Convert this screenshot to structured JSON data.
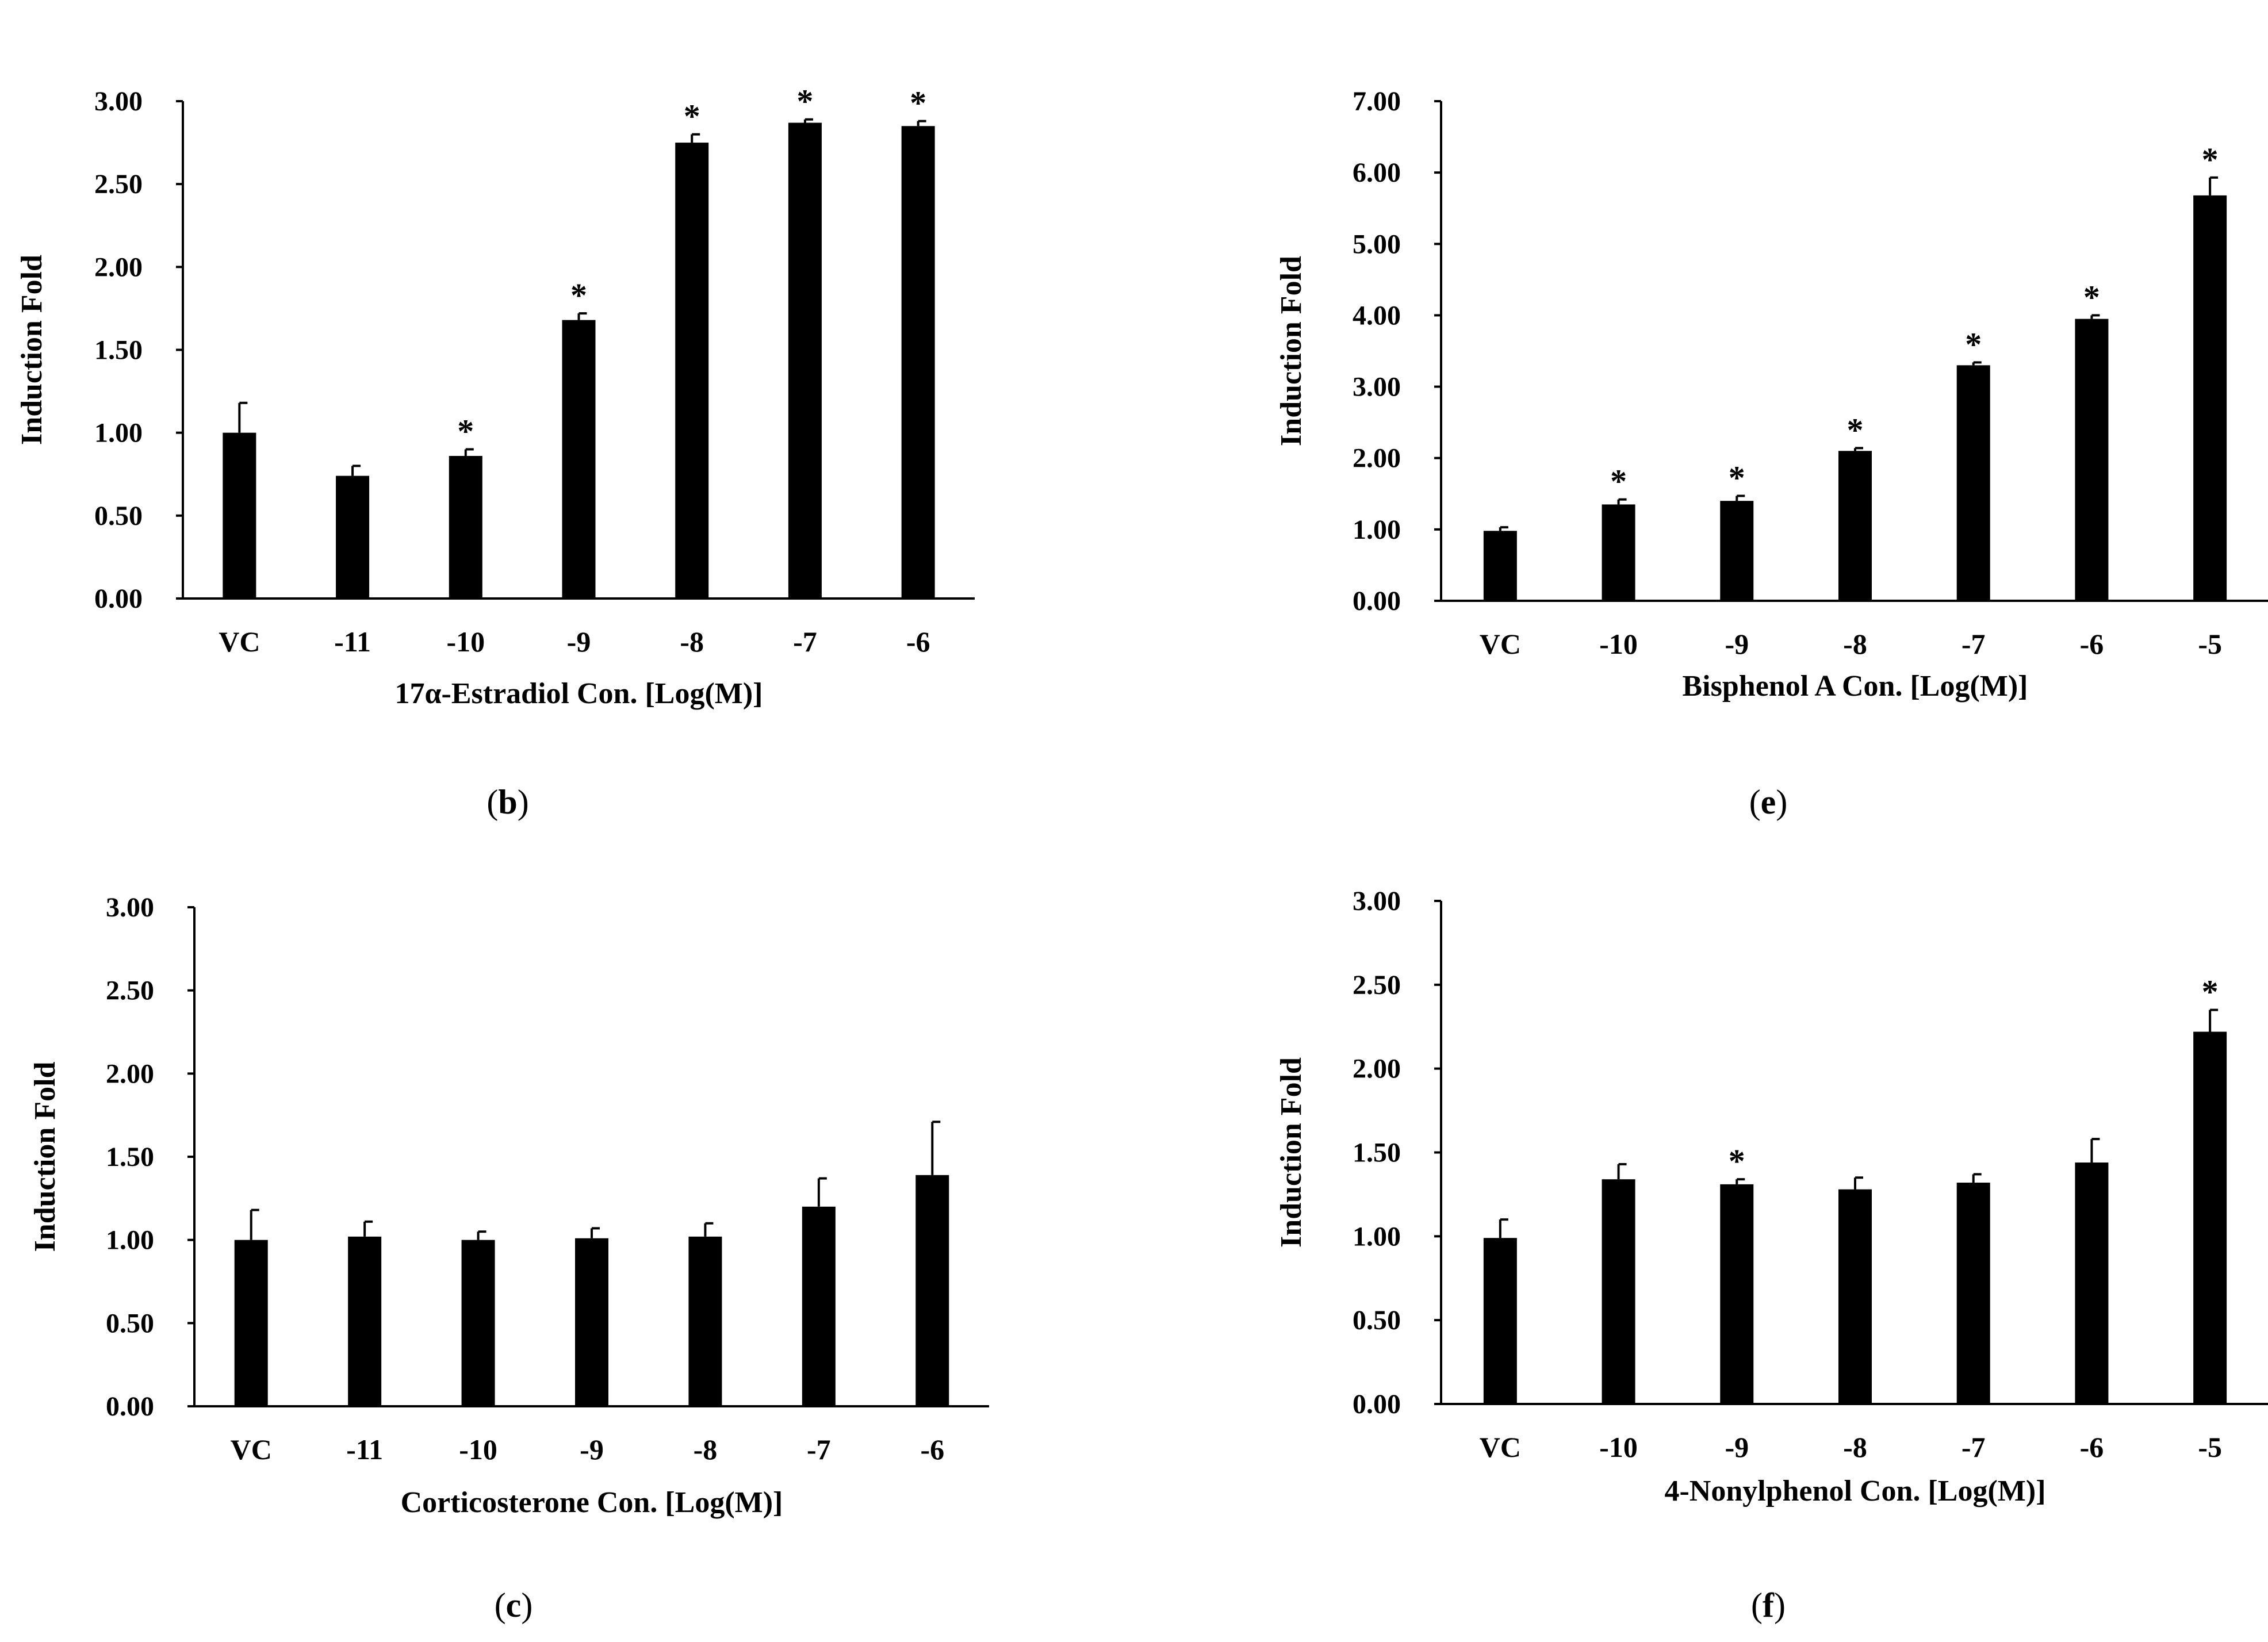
{
  "figure": {
    "background": "#ffffff",
    "bar_color": "#000000"
  },
  "chart_data": [
    {
      "panel": "b",
      "type": "bar",
      "categories": [
        "VC",
        "-11",
        "-10",
        "-9",
        "-8",
        "-7",
        "-6"
      ],
      "values": [
        1.0,
        0.74,
        0.86,
        1.68,
        2.75,
        2.87,
        2.85
      ],
      "errors": [
        0.18,
        0.06,
        0.04,
        0.04,
        0.05,
        0.02,
        0.03
      ],
      "significant": [
        false,
        false,
        true,
        true,
        true,
        true,
        true
      ],
      "sig_marker": "*",
      "xlabel": "17α-Estradiol Con. [Log(M)]",
      "ylabel": "Induction Fold",
      "ylim": [
        0,
        3
      ],
      "yticks": [
        "0.00",
        "0.50",
        "1.00",
        "1.50",
        "2.00",
        "2.50",
        "3.00"
      ],
      "panel_label": {
        "open": "(",
        "letter": "b",
        "close": ")"
      }
    },
    {
      "panel": "e",
      "type": "bar",
      "categories": [
        "VC",
        "-10",
        "-9",
        "-8",
        "-7",
        "-6",
        "-5"
      ],
      "values": [
        0.98,
        1.35,
        1.4,
        2.1,
        3.3,
        3.95,
        5.68
      ],
      "errors": [
        0.05,
        0.07,
        0.07,
        0.04,
        0.04,
        0.05,
        0.25
      ],
      "significant": [
        false,
        true,
        true,
        true,
        true,
        true,
        true
      ],
      "sig_marker": "*",
      "xlabel": "Bisphenol A Con. [Log(M)]",
      "ylabel": "Induction Fold",
      "ylim": [
        0,
        7
      ],
      "yticks": [
        "0.00",
        "1.00",
        "2.00",
        "3.00",
        "4.00",
        "5.00",
        "6.00",
        "7.00"
      ],
      "panel_label": {
        "open": "(",
        "letter": "e",
        "close": ")"
      }
    },
    {
      "panel": "c",
      "type": "bar",
      "categories": [
        "VC",
        "-11",
        "-10",
        "-9",
        "-8",
        "-7",
        "-6"
      ],
      "values": [
        1.0,
        1.02,
        1.0,
        1.01,
        1.02,
        1.2,
        1.39
      ],
      "errors": [
        0.18,
        0.09,
        0.05,
        0.06,
        0.08,
        0.17,
        0.32
      ],
      "significant": [
        false,
        false,
        false,
        false,
        false,
        false,
        false
      ],
      "sig_marker": "*",
      "xlabel": "Corticosterone Con. [Log(M)]",
      "ylabel": "Induction Fold",
      "ylim": [
        0,
        3
      ],
      "yticks": [
        "0.00",
        "0.50",
        "1.00",
        "1.50",
        "2.00",
        "2.50",
        "3.00"
      ],
      "panel_label": {
        "open": "(",
        "letter": "c",
        "close": ")"
      }
    },
    {
      "panel": "f",
      "type": "bar",
      "categories": [
        "VC",
        "-10",
        "-9",
        "-8",
        "-7",
        "-6",
        "-5"
      ],
      "values": [
        0.99,
        1.34,
        1.31,
        1.28,
        1.32,
        1.44,
        2.22
      ],
      "errors": [
        0.11,
        0.09,
        0.03,
        0.07,
        0.05,
        0.14,
        0.13
      ],
      "significant": [
        false,
        false,
        true,
        false,
        false,
        false,
        true
      ],
      "sig_marker": "*",
      "xlabel": "4-Nonylphenol Con. [Log(M)]",
      "ylabel": "Induction Fold",
      "ylim": [
        0,
        3
      ],
      "yticks": [
        "0.00",
        "0.50",
        "1.00",
        "1.50",
        "2.00",
        "2.50",
        "3.00"
      ],
      "panel_label": {
        "open": "(",
        "letter": "f",
        "close": ")"
      }
    }
  ]
}
